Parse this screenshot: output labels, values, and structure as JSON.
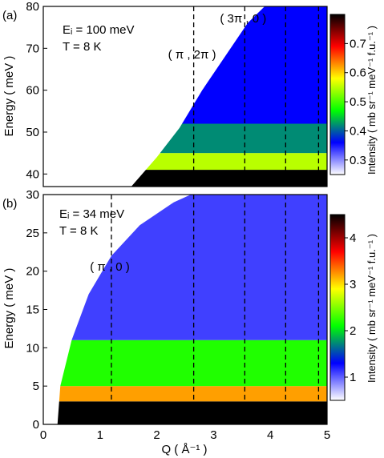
{
  "chart_data": [
    {
      "panel_label": "(a)",
      "type": "heatmap",
      "annotation_lines": [
        "Eᵢ = 100 meV",
        "T = 8 K"
      ],
      "xlim": [
        0,
        5
      ],
      "ylim": [
        37,
        80
      ],
      "ylabel": "Energy ( meV )",
      "x_ticks": [],
      "y_ticks": [
        40,
        50,
        60,
        70,
        80
      ],
      "colorbar": {
        "label": "Intensity ( mb sr⁻¹ meV⁻¹ f.u.⁻¹ )",
        "range": [
          0.25,
          0.8
        ],
        "ticks": [
          0.3,
          0.4,
          0.5,
          0.6,
          0.7
        ],
        "tick_labels": [
          "0.3",
          "0.4",
          "0.5",
          "0.6",
          "0.7"
        ],
        "colormap": [
          "#ffffff",
          "#0000ff",
          "#00ff00",
          "#ffff00",
          "#ff0000",
          "#000000"
        ]
      },
      "kinematic_limit": [
        [
          1.55,
          37
        ],
        [
          2.0,
          44
        ],
        [
          2.4,
          51
        ],
        [
          2.8,
          60
        ],
        [
          3.2,
          68
        ],
        [
          3.6,
          76
        ],
        [
          3.9,
          80
        ]
      ],
      "dashed_lines": [
        {
          "x": 2.65,
          "label": "( π , 2π )"
        },
        {
          "x": 3.55,
          "label": "( 3π , 0 )"
        },
        {
          "x": 4.27,
          "label": ""
        },
        {
          "x": 4.85,
          "label": ""
        }
      ],
      "intensity_bands": [
        {
          "E": [
            37,
            41
          ],
          "level": 0.8
        },
        {
          "E": [
            41,
            45
          ],
          "level": 0.55
        },
        {
          "E": [
            45,
            52
          ],
          "level": 0.42
        },
        {
          "E": [
            52,
            80
          ],
          "level": 0.36
        }
      ]
    },
    {
      "panel_label": "(b)",
      "type": "heatmap",
      "annotation_lines": [
        "Eᵢ = 34 meV",
        "T = 8 K"
      ],
      "xlim": [
        0,
        5
      ],
      "ylim": [
        0,
        30
      ],
      "xlabel": "Q ( Å⁻¹ )",
      "ylabel": "Energy ( meV )",
      "x_ticks": [
        0,
        1,
        2,
        3,
        4,
        5
      ],
      "y_ticks": [
        0,
        5,
        10,
        15,
        20,
        25,
        30
      ],
      "colorbar": {
        "label": "Intensity ( mb sr⁻¹ meV⁻¹ f.u.⁻¹ )",
        "range": [
          0.5,
          4.5
        ],
        "ticks": [
          1,
          2,
          3,
          4
        ],
        "tick_labels": [
          "1",
          "2",
          "3",
          "4"
        ],
        "colormap": [
          "#ffffff",
          "#0000ff",
          "#00ff00",
          "#ffff00",
          "#ff0000",
          "#000000"
        ]
      },
      "kinematic_limit": [
        [
          0.25,
          0
        ],
        [
          0.3,
          5
        ],
        [
          0.5,
          11
        ],
        [
          0.8,
          17
        ],
        [
          1.2,
          22
        ],
        [
          1.7,
          26
        ],
        [
          2.3,
          29
        ],
        [
          2.6,
          30
        ]
      ],
      "dashed_lines": [
        {
          "x": 1.2,
          "label": "( π , 0 )"
        },
        {
          "x": 2.65,
          "label": ""
        },
        {
          "x": 3.55,
          "label": ""
        },
        {
          "x": 4.27,
          "label": ""
        },
        {
          "x": 4.85,
          "label": ""
        }
      ],
      "intensity_bands": [
        {
          "E": [
            0,
            3
          ],
          "level": 4.5
        },
        {
          "E": [
            3,
            5
          ],
          "level": 3.2
        },
        {
          "E": [
            5,
            11
          ],
          "level": 2.2
        },
        {
          "E": [
            11,
            30
          ],
          "level": 1.1
        }
      ]
    }
  ]
}
